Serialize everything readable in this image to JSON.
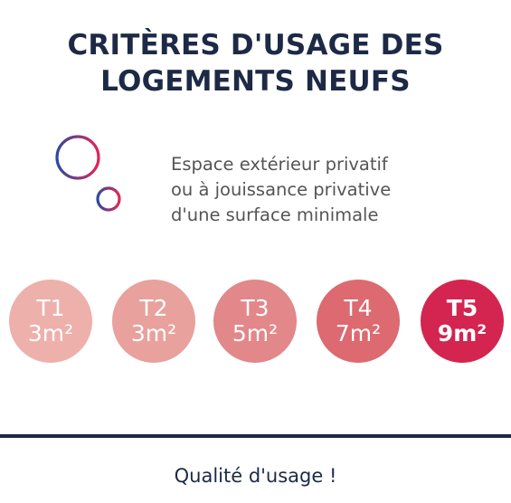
{
  "title": {
    "line1": "CRITÈRES D'USAGE DES",
    "line2": "LOGEMENTS NEUFS"
  },
  "icon": {
    "name": "tree-icon",
    "gradient": [
      "#2e4a9e",
      "#e0265a"
    ]
  },
  "description": {
    "line1": "Espace extérieur privatif",
    "line2": "ou à jouissance privative",
    "line3": "d'une surface minimale"
  },
  "sizes": [
    {
      "type": "T1",
      "area": "3m²",
      "color": "#edb0ab"
    },
    {
      "type": "T2",
      "area": "3m²",
      "color": "#e8a19c"
    },
    {
      "type": "T3",
      "area": "5m²",
      "color": "#e2878a"
    },
    {
      "type": "T4",
      "area": "7m²",
      "color": "#dc6a70"
    },
    {
      "type": "T5",
      "area": "9m²",
      "color": "#d3254f"
    }
  ],
  "footer": {
    "label": "Qualité d'usage !"
  }
}
